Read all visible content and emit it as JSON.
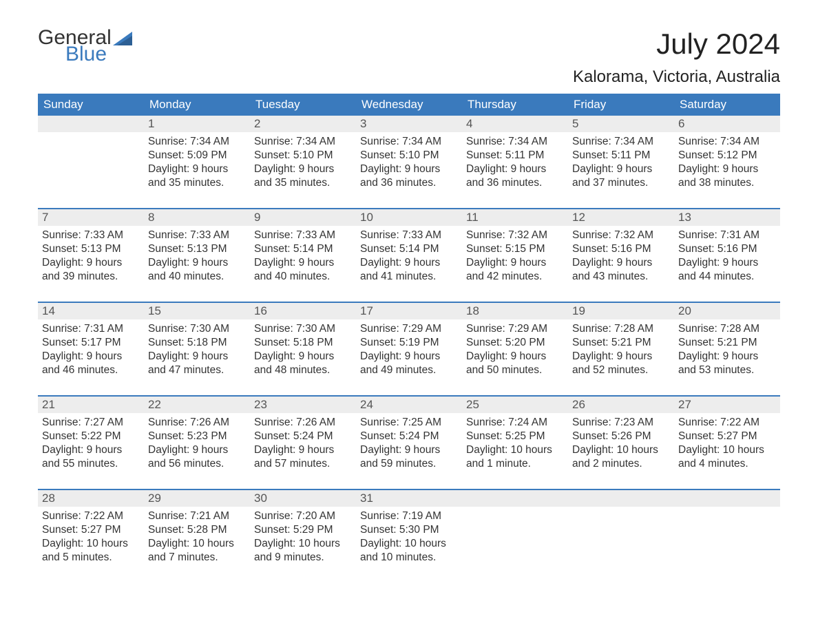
{
  "logo": {
    "text1": "General",
    "text2": "Blue",
    "flag_color": "#3a7abd"
  },
  "title": "July 2024",
  "location": "Kalorama, Victoria, Australia",
  "colors": {
    "header_bg": "#3a7abd",
    "header_fg": "#ffffff",
    "cell_head_bg": "#ededed",
    "row_border": "#3a7abd",
    "text": "#333333"
  },
  "day_names": [
    "Sunday",
    "Monday",
    "Tuesday",
    "Wednesday",
    "Thursday",
    "Friday",
    "Saturday"
  ],
  "weeks": [
    [
      null,
      {
        "n": "1",
        "sr": "7:34 AM",
        "ss": "5:09 PM",
        "dl": "9 hours and 35 minutes."
      },
      {
        "n": "2",
        "sr": "7:34 AM",
        "ss": "5:10 PM",
        "dl": "9 hours and 35 minutes."
      },
      {
        "n": "3",
        "sr": "7:34 AM",
        "ss": "5:10 PM",
        "dl": "9 hours and 36 minutes."
      },
      {
        "n": "4",
        "sr": "7:34 AM",
        "ss": "5:11 PM",
        "dl": "9 hours and 36 minutes."
      },
      {
        "n": "5",
        "sr": "7:34 AM",
        "ss": "5:11 PM",
        "dl": "9 hours and 37 minutes."
      },
      {
        "n": "6",
        "sr": "7:34 AM",
        "ss": "5:12 PM",
        "dl": "9 hours and 38 minutes."
      }
    ],
    [
      {
        "n": "7",
        "sr": "7:33 AM",
        "ss": "5:13 PM",
        "dl": "9 hours and 39 minutes."
      },
      {
        "n": "8",
        "sr": "7:33 AM",
        "ss": "5:13 PM",
        "dl": "9 hours and 40 minutes."
      },
      {
        "n": "9",
        "sr": "7:33 AM",
        "ss": "5:14 PM",
        "dl": "9 hours and 40 minutes."
      },
      {
        "n": "10",
        "sr": "7:33 AM",
        "ss": "5:14 PM",
        "dl": "9 hours and 41 minutes."
      },
      {
        "n": "11",
        "sr": "7:32 AM",
        "ss": "5:15 PM",
        "dl": "9 hours and 42 minutes."
      },
      {
        "n": "12",
        "sr": "7:32 AM",
        "ss": "5:16 PM",
        "dl": "9 hours and 43 minutes."
      },
      {
        "n": "13",
        "sr": "7:31 AM",
        "ss": "5:16 PM",
        "dl": "9 hours and 44 minutes."
      }
    ],
    [
      {
        "n": "14",
        "sr": "7:31 AM",
        "ss": "5:17 PM",
        "dl": "9 hours and 46 minutes."
      },
      {
        "n": "15",
        "sr": "7:30 AM",
        "ss": "5:18 PM",
        "dl": "9 hours and 47 minutes."
      },
      {
        "n": "16",
        "sr": "7:30 AM",
        "ss": "5:18 PM",
        "dl": "9 hours and 48 minutes."
      },
      {
        "n": "17",
        "sr": "7:29 AM",
        "ss": "5:19 PM",
        "dl": "9 hours and 49 minutes."
      },
      {
        "n": "18",
        "sr": "7:29 AM",
        "ss": "5:20 PM",
        "dl": "9 hours and 50 minutes."
      },
      {
        "n": "19",
        "sr": "7:28 AM",
        "ss": "5:21 PM",
        "dl": "9 hours and 52 minutes."
      },
      {
        "n": "20",
        "sr": "7:28 AM",
        "ss": "5:21 PM",
        "dl": "9 hours and 53 minutes."
      }
    ],
    [
      {
        "n": "21",
        "sr": "7:27 AM",
        "ss": "5:22 PM",
        "dl": "9 hours and 55 minutes."
      },
      {
        "n": "22",
        "sr": "7:26 AM",
        "ss": "5:23 PM",
        "dl": "9 hours and 56 minutes."
      },
      {
        "n": "23",
        "sr": "7:26 AM",
        "ss": "5:24 PM",
        "dl": "9 hours and 57 minutes."
      },
      {
        "n": "24",
        "sr": "7:25 AM",
        "ss": "5:24 PM",
        "dl": "9 hours and 59 minutes."
      },
      {
        "n": "25",
        "sr": "7:24 AM",
        "ss": "5:25 PM",
        "dl": "10 hours and 1 minute."
      },
      {
        "n": "26",
        "sr": "7:23 AM",
        "ss": "5:26 PM",
        "dl": "10 hours and 2 minutes."
      },
      {
        "n": "27",
        "sr": "7:22 AM",
        "ss": "5:27 PM",
        "dl": "10 hours and 4 minutes."
      }
    ],
    [
      {
        "n": "28",
        "sr": "7:22 AM",
        "ss": "5:27 PM",
        "dl": "10 hours and 5 minutes."
      },
      {
        "n": "29",
        "sr": "7:21 AM",
        "ss": "5:28 PM",
        "dl": "10 hours and 7 minutes."
      },
      {
        "n": "30",
        "sr": "7:20 AM",
        "ss": "5:29 PM",
        "dl": "10 hours and 9 minutes."
      },
      {
        "n": "31",
        "sr": "7:19 AM",
        "ss": "5:30 PM",
        "dl": "10 hours and 10 minutes."
      },
      null,
      null,
      null
    ]
  ],
  "labels": {
    "sunrise": "Sunrise: ",
    "sunset": "Sunset: ",
    "daylight": "Daylight: "
  }
}
